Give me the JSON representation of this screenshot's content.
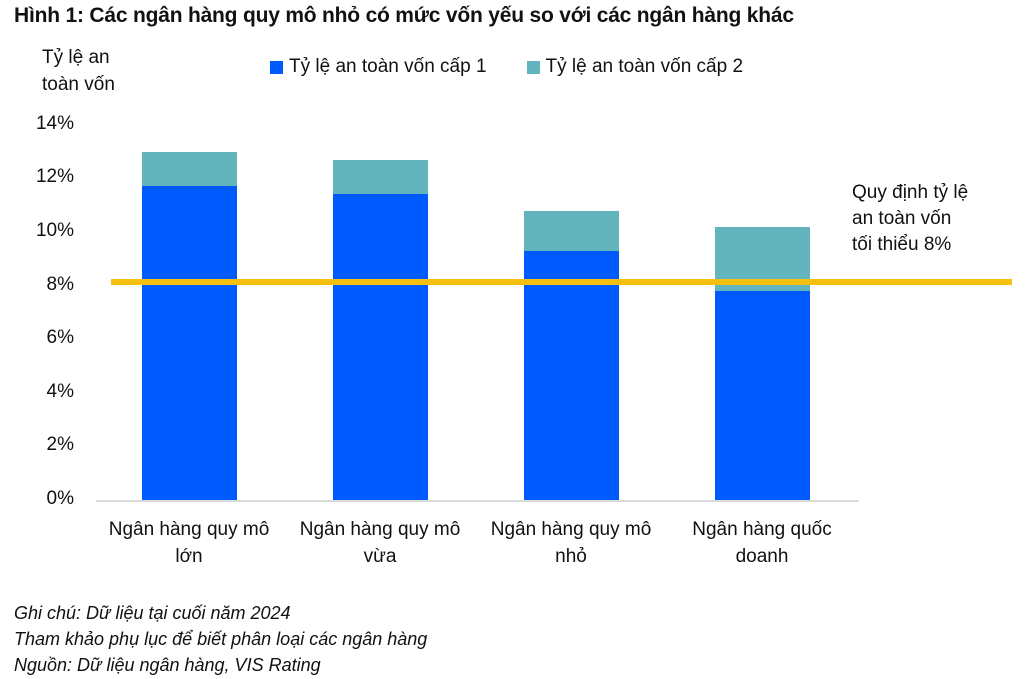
{
  "title": "Hình 1: Các ngân hàng quy mô nhỏ có mức vốn yếu so với các ngân hàng khác",
  "ylabel_lines": [
    "Tỷ lệ an",
    "toàn vốn"
  ],
  "legend": [
    {
      "label": "Tỷ lệ an toàn vốn cấp 1",
      "color": "#005BFF"
    },
    {
      "label": "Tỷ lệ an toàn vốn cấp 2",
      "color": "#62B5BC"
    }
  ],
  "y_ticks": [
    "0%",
    "2%",
    "4%",
    "6%",
    "8%",
    "10%",
    "12%",
    "14%"
  ],
  "categories": [
    [
      "Ngân hàng quy mô",
      "lớn"
    ],
    [
      "Ngân hàng quy mô",
      "vừa"
    ],
    [
      "Ngân hàng quy mô",
      "nhỏ"
    ],
    [
      "Ngân hàng quốc",
      "doanh"
    ]
  ],
  "reference": {
    "label_lines": [
      "Quy định tỷ lệ",
      "an toàn vốn",
      "tối thiểu 8%"
    ],
    "value": 8,
    "color": "#F5C010"
  },
  "notes": [
    "Ghi chú: Dữ liệu tại cuối năm 2024",
    "Tham khảo phụ lục để biết phân loại các ngân hàng",
    "Nguồn: Dữ liệu ngân hàng, VIS Rating"
  ],
  "chart_data": {
    "type": "bar",
    "stacked": true,
    "title": "Hình 1: Các ngân hàng quy mô nhỏ có mức vốn yếu so với các ngân hàng khác",
    "xlabel": "",
    "ylabel": "Tỷ lệ an toàn vốn",
    "categories": [
      "Ngân hàng quy mô lớn",
      "Ngân hàng quy mô vừa",
      "Ngân hàng quy mô nhỏ",
      "Ngân hàng quốc doanh"
    ],
    "series": [
      {
        "name": "Tỷ lệ an toàn vốn cấp 1",
        "color": "#005BFF",
        "values": [
          11.7,
          11.4,
          9.3,
          7.8
        ]
      },
      {
        "name": "Tỷ lệ an toàn vốn cấp 2",
        "color": "#62B5BC",
        "values": [
          1.3,
          1.3,
          1.5,
          2.4
        ]
      }
    ],
    "totals": [
      13.0,
      12.7,
      10.8,
      10.2
    ],
    "reference_line": {
      "value": 8,
      "label": "Quy định tỷ lệ an toàn vốn tối thiểu 8%",
      "color": "#F5C010"
    },
    "ylim": [
      0,
      14
    ],
    "y_tick_step": 2,
    "y_format": "percent",
    "grid": false,
    "legend_position": "top"
  }
}
